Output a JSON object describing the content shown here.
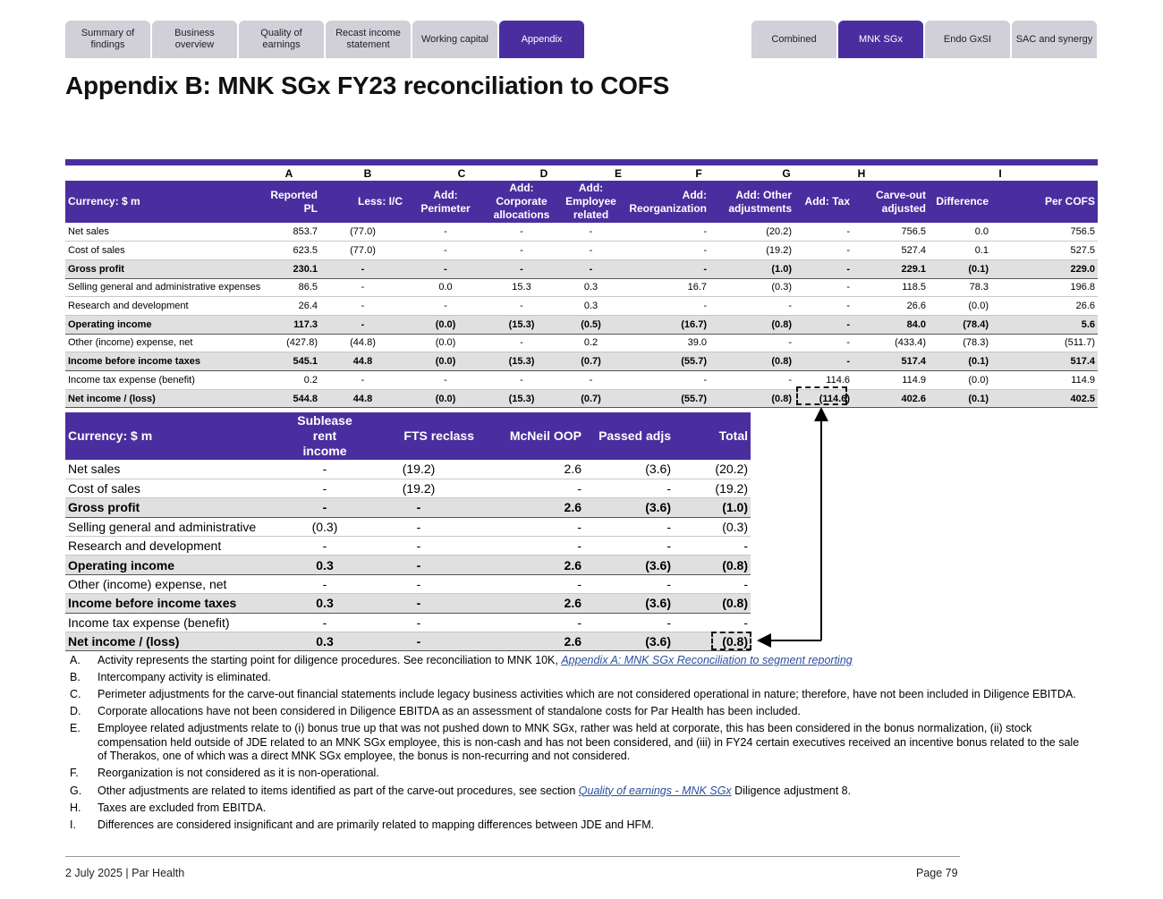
{
  "nav": {
    "left_tabs": [
      "Summary of findings",
      "Business overview",
      "Quality of earnings",
      "Recast income statement",
      "Working capital",
      "Appendix"
    ],
    "left_active": "Appendix",
    "right_tabs": [
      "Combined",
      "MNK SGx",
      "Endo GxSI",
      "SAC and synergy"
    ],
    "right_active": "MNK SGx"
  },
  "page_title": "Appendix B: MNK SGx FY23 reconciliation to COFS",
  "table1": {
    "column_letters": [
      "A",
      "B",
      "C",
      "D",
      "E",
      "F",
      "G",
      "H",
      "I"
    ],
    "headers": [
      "Currency: $ m",
      "Reported PL",
      "Less: I/C",
      "Add: Perimeter",
      "Add: Corporate allocations",
      "Add: Employee related",
      "Add: Reorganization",
      "Add: Other adjustments",
      "Add: Tax",
      "Carve-out adjusted",
      "Difference",
      "Per COFS"
    ],
    "rows": [
      {
        "label": "Net sales",
        "bold": false,
        "values": [
          "853.7",
          "(77.0)",
          "-",
          "-",
          "-",
          "-",
          "(20.2)",
          "-",
          "756.5",
          "0.0",
          "756.5"
        ]
      },
      {
        "label": "Cost of sales",
        "bold": false,
        "values": [
          "623.5",
          "(77.0)",
          "-",
          "-",
          "-",
          "-",
          "(19.2)",
          "-",
          "527.4",
          "0.1",
          "527.5"
        ]
      },
      {
        "label": "Gross profit",
        "bold": true,
        "values": [
          "230.1",
          "-",
          "-",
          "-",
          "-",
          "-",
          "(1.0)",
          "-",
          "229.1",
          "(0.1)",
          "229.0"
        ]
      },
      {
        "label": "Selling general and administrative expenses",
        "bold": false,
        "values": [
          "86.5",
          "-",
          "0.0",
          "15.3",
          "0.3",
          "16.7",
          "(0.3)",
          "-",
          "118.5",
          "78.3",
          "196.8"
        ]
      },
      {
        "label": "Research and development",
        "bold": false,
        "values": [
          "26.4",
          "-",
          "-",
          "-",
          "0.3",
          "-",
          "-",
          "-",
          "26.6",
          "(0.0)",
          "26.6"
        ]
      },
      {
        "label": "Operating income",
        "bold": true,
        "values": [
          "117.3",
          "-",
          "(0.0)",
          "(15.3)",
          "(0.5)",
          "(16.7)",
          "(0.8)",
          "-",
          "84.0",
          "(78.4)",
          "5.6"
        ]
      },
      {
        "label": "Other (income) expense, net",
        "bold": false,
        "values": [
          "(427.8)",
          "(44.8)",
          "(0.0)",
          "-",
          "0.2",
          "39.0",
          "-",
          "-",
          "(433.4)",
          "(78.3)",
          "(511.7)"
        ]
      },
      {
        "label": "Income before income taxes",
        "bold": true,
        "values": [
          "545.1",
          "44.8",
          "(0.0)",
          "(15.3)",
          "(0.7)",
          "(55.7)",
          "(0.8)",
          "-",
          "517.4",
          "(0.1)",
          "517.4"
        ]
      },
      {
        "label": "Income tax expense (benefit)",
        "bold": false,
        "values": [
          "0.2",
          "-",
          "-",
          "-",
          "-",
          "-",
          "-",
          "114.6",
          "114.9",
          "(0.0)",
          "114.9"
        ]
      },
      {
        "label": "Net income / (loss)",
        "bold": true,
        "values": [
          "544.8",
          "44.8",
          "(0.0)",
          "(15.3)",
          "(0.7)",
          "(55.7)",
          "(0.8)",
          "(114.6)",
          "402.6",
          "(0.1)",
          "402.5"
        ]
      }
    ]
  },
  "table2": {
    "headers": [
      "Currency: $ m",
      "Sublease rent income",
      "FTS reclass",
      "McNeil OOP",
      "Passed adjs",
      "Total"
    ],
    "rows": [
      {
        "label": "Net sales",
        "bold": false,
        "values": [
          "-",
          "(19.2)",
          "2.6",
          "(3.6)",
          "(20.2)"
        ]
      },
      {
        "label": "Cost of sales",
        "bold": false,
        "values": [
          "-",
          "(19.2)",
          "-",
          "-",
          "(19.2)"
        ]
      },
      {
        "label": "Gross profit",
        "bold": true,
        "values": [
          "-",
          "-",
          "2.6",
          "(3.6)",
          "(1.0)"
        ]
      },
      {
        "label": "Selling general and administrative",
        "bold": false,
        "values": [
          "(0.3)",
          "-",
          "-",
          "-",
          "(0.3)"
        ]
      },
      {
        "label": "Research and development",
        "bold": false,
        "values": [
          "-",
          "-",
          "-",
          "-",
          "-"
        ]
      },
      {
        "label": "Operating income",
        "bold": true,
        "values": [
          "0.3",
          "-",
          "2.6",
          "(3.6)",
          "(0.8)"
        ]
      },
      {
        "label": "Other (income) expense, net",
        "bold": false,
        "values": [
          "-",
          "-",
          "-",
          "-",
          "-"
        ]
      },
      {
        "label": "Income before income taxes",
        "bold": true,
        "values": [
          "0.3",
          "-",
          "2.6",
          "(3.6)",
          "(0.8)"
        ]
      },
      {
        "label": "Income tax expense (benefit)",
        "bold": false,
        "values": [
          "-",
          "-",
          "-",
          "-",
          "-"
        ]
      },
      {
        "label": "Net income / (loss)",
        "bold": true,
        "values": [
          "0.3",
          "-",
          "2.6",
          "(3.6)",
          "(0.8)"
        ]
      }
    ]
  },
  "notes": [
    {
      "letter": "A.",
      "text": "Activity represents the starting point for diligence procedures. See reconciliation to MNK 10K, ",
      "link": "Appendix A: MNK SGx Reconciliation to segment reporting",
      "after": ""
    },
    {
      "letter": "B.",
      "text": "Intercompany activity is eliminated.",
      "link": "",
      "after": ""
    },
    {
      "letter": "C.",
      "text": "Perimeter adjustments for the carve-out financial statements include legacy business activities which are not considered operational in nature; therefore, have not been included in Diligence EBITDA.",
      "link": "",
      "after": ""
    },
    {
      "letter": "D.",
      "text": "Corporate allocations have not been considered in Diligence EBITDA as an assessment of standalone costs for Par Health has been included.",
      "link": "",
      "after": ""
    },
    {
      "letter": "E.",
      "text": "Employee related adjustments relate to (i) bonus true up that was not pushed down to MNK SGx, rather was held at corporate, this has been considered in the bonus normalization, (ii) stock compensation held outside of JDE related to an MNK SGx employee, this is non-cash and has not been considered, and (iii) in FY24 certain executives received an incentive bonus related to the sale of Therakos, one of which was a direct MNK SGx employee, the bonus is non-recurring and not considered.",
      "link": "",
      "after": ""
    },
    {
      "letter": "F.",
      "text": "Reorganization is not considered as it is non-operational.",
      "link": "",
      "after": ""
    },
    {
      "letter": "G.",
      "text": "Other adjustments are related to items identified as part of the carve-out procedures, see section ",
      "link": "Quality of earnings - MNK SGx",
      "after": " Diligence adjustment 8."
    },
    {
      "letter": "H.",
      "text": "Taxes are excluded from EBITDA.",
      "link": "",
      "after": ""
    },
    {
      "letter": "I.",
      "text": "Differences are considered insignificant and are primarily related to mapping differences between JDE and HFM.",
      "link": "",
      "after": ""
    }
  ],
  "footer": {
    "left": "2 July 2025 | Par Health",
    "right": "Page 79"
  },
  "colors": {
    "accent": "#4a2e9f",
    "tab_inactive": "#d1cfd8",
    "subtotal_bg": "#e0e0e0"
  }
}
